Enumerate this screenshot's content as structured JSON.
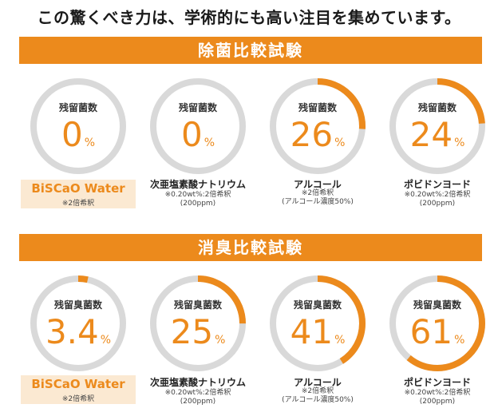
{
  "headline": "この驚くべき力は、学術的にも高い注目を集めています。",
  "sections": [
    {
      "title": "除菌比較試験",
      "items": [
        {
          "label": "残留菌数",
          "value": "0",
          "unit": "%",
          "ratio": 0,
          "name": "BiSCaO Water",
          "notes": [
            "※2倍希釈"
          ],
          "brand": true
        },
        {
          "label": "残留菌数",
          "value": "0",
          "unit": "%",
          "ratio": 0,
          "name": "次亜塩素酸ナトリウム",
          "notes": [
            "※0.20wt%:2倍希釈",
            "(200ppm)"
          ],
          "brand": false
        },
        {
          "label": "残留菌数",
          "value": "26",
          "unit": "%",
          "ratio": 0.26,
          "name": "アルコール",
          "notes": [
            "※2倍希釈",
            "(アルコール濃度50%)"
          ],
          "brand": false
        },
        {
          "label": "残留菌数",
          "value": "24",
          "unit": "%",
          "ratio": 0.24,
          "name": "ポビドンヨード",
          "notes": [
            "※0.20wt%:2倍希釈",
            "(200ppm)"
          ],
          "brand": false
        }
      ]
    },
    {
      "title": "消臭比較試験",
      "items": [
        {
          "label": "残留臭菌数",
          "value": "3.4",
          "unit": "%",
          "ratio": 0.034,
          "name": "BiSCaO Water",
          "notes": [
            "※2倍希釈"
          ],
          "brand": true
        },
        {
          "label": "残留臭菌数",
          "value": "25",
          "unit": "%",
          "ratio": 0.25,
          "name": "次亜塩素酸ナトリウム",
          "notes": [
            "※0.20wt%:2倍希釈",
            "(200ppm)"
          ],
          "brand": false
        },
        {
          "label": "残留臭菌数",
          "value": "41",
          "unit": "%",
          "ratio": 0.41,
          "name": "アルコール",
          "notes": [
            "※2倍希釈",
            "(アルコール濃度50%)"
          ],
          "brand": false
        },
        {
          "label": "残留臭菌数",
          "value": "61",
          "unit": "%",
          "ratio": 0.61,
          "name": "ポビドンヨード",
          "notes": [
            "※0.20wt%:2倍希釈",
            "(200ppm)"
          ],
          "brand": false
        }
      ]
    }
  ],
  "colors": {
    "accent": "#ec8a1c",
    "ring_track": "#d9d9d9",
    "brand_bg": "#fbe9d2"
  }
}
